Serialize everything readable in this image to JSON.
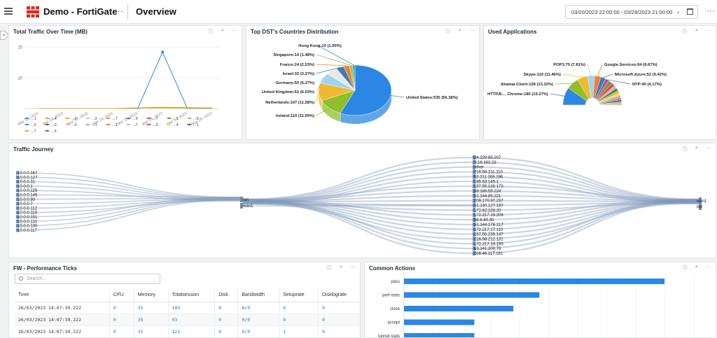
{
  "header": {
    "app_title": "Demo - FortiGate",
    "page_title": "Overview",
    "date_range": "03/20/2023 22:00:00 - 03/28/2023 21:00:00",
    "more": "···"
  },
  "tools": {
    "info": "ⓘ",
    "zoom": "⌕",
    "more": "···"
  },
  "traffic_over_time": {
    "title": "Total Traffic Over Time (MB)",
    "chart_data": {
      "type": "line",
      "x": [
        "Mar 21, 2023",
        "Mar 22, 2023",
        "Mar 23, 2023",
        "Mar 24, 2023",
        "Mar 25, 2023",
        "Mar 26, 2023",
        "Mar 27, 2023",
        "Mar 28, 2023"
      ],
      "y_ticks": [
        10,
        20
      ],
      "ylim": [
        0,
        22
      ],
      "series": [
        {
          "name": "...1",
          "color": "#2b8be6",
          "values": [
            0,
            0,
            0,
            0,
            0,
            18.5,
            0,
            0
          ]
        },
        {
          "name": "...4",
          "color": "#9bbd2a",
          "values": [
            0,
            0,
            0,
            0,
            0.2,
            0.4,
            0.3,
            0.2
          ]
        },
        {
          "name": "...0",
          "color": "#f0a030",
          "values": [
            0,
            0,
            0,
            0,
            0.1,
            0.2,
            0.1,
            0.1
          ]
        }
      ],
      "legend": [
        {
          "label": "...1",
          "color": "#2b8be6"
        },
        {
          "label": "...4",
          "color": "#9bbd2a"
        },
        {
          "label": "...0",
          "color": "#f0a030"
        },
        {
          "label": "...2",
          "color": "#9fd0f0"
        },
        {
          "label": "...7",
          "color": "#f08a3c"
        },
        {
          "label": "...5",
          "color": "#3a7db8"
        },
        {
          "label": "...7",
          "color": "#b84fa0"
        },
        {
          "label": "...3",
          "color": "#6d9c3a"
        },
        {
          "label": "...6",
          "color": "#c8b84a"
        },
        {
          "label": "...0",
          "color": "#2b8be6"
        },
        {
          "label": "...0",
          "color": "#b83a3a"
        },
        {
          "label": "...0",
          "color": "#f0b060"
        },
        {
          "label": "...1",
          "color": "#b89ee0"
        },
        {
          "label": "...1",
          "color": "#e07830"
        },
        {
          "label": "...7",
          "color": "#f5a0c0"
        },
        {
          "label": "...0",
          "color": "#e04848"
        },
        {
          "label": "...4",
          "color": "#f0e040"
        },
        {
          "label": "...1",
          "color": "#2a5fa8"
        },
        {
          "label": "...7",
          "color": "#f0a030"
        },
        {
          "label": "...5",
          "color": "#2e8b3a"
        }
      ]
    }
  },
  "countries": {
    "title": "Top DST's Countries Distribution",
    "chart_data": {
      "type": "pie",
      "slices": [
        {
          "label": "United States:535 (56.38%)",
          "value": 535,
          "color": "#2b87e3"
        },
        {
          "label": "Ireland:110 (11.59%)",
          "value": 110,
          "color": "#8fbf2a"
        },
        {
          "label": "Netherlands:107 (11.28%)",
          "value": 107,
          "color": "#f2b830"
        },
        {
          "label": "United Kingdom:62 (6.53%)",
          "value": 62,
          "color": "#9fd3f2"
        },
        {
          "label": "Germany:50 (5.27%)",
          "value": 50,
          "color": "#e8e8e8"
        },
        {
          "label": "Israel:32 (3.37%)",
          "value": 32,
          "color": "#3b7db8"
        },
        {
          "label": "France:24 (2.53%)",
          "value": 24,
          "color": "#f08030"
        },
        {
          "label": "Singapore:14 (1.48%)",
          "value": 14,
          "color": "#a0c060"
        },
        {
          "label": "Hong Kong:10 (1.05%)",
          "value": 10,
          "color": "#3fa0b0"
        }
      ]
    }
  },
  "applications": {
    "title": "Used Applications",
    "chart_data": {
      "type": "pie",
      "slices": [
        {
          "label": "HTTP.B..._Chrome:185 (19.27%)",
          "value": 185,
          "color": "#2b87e3"
        },
        {
          "label": "Akamai.Client:128 (13.33%)",
          "value": 128,
          "color": "#8fbf2a"
        },
        {
          "label": "Skype:110 (11.46%)",
          "value": 110,
          "color": "#f2b830"
        },
        {
          "label": "POP3:75 (7.81%)",
          "value": 75,
          "color": "#9fd3f2"
        },
        {
          "label": "Google.Services:64 (6.67%)",
          "value": 64,
          "color": "#f08030"
        },
        {
          "label": "Microsoft.Azure:52 (5.42%)",
          "value": 52,
          "color": "#3b7db8"
        },
        {
          "label": "NTP:40 (4.17%)",
          "value": 40,
          "color": "#b84fa0"
        },
        {
          "label": "",
          "value": 40,
          "color": "#6d9c3a"
        },
        {
          "label": "",
          "value": 36,
          "color": "#e04848"
        },
        {
          "label": "",
          "value": 32,
          "color": "#f5a0c0"
        },
        {
          "label": "",
          "value": 30,
          "color": "#2e8b3a"
        },
        {
          "label": "",
          "value": 28,
          "color": "#c8b84a"
        },
        {
          "label": "",
          "value": 26,
          "color": "#f0e040"
        },
        {
          "label": "",
          "value": 24,
          "color": "#b89ee0"
        },
        {
          "label": "",
          "value": 22,
          "color": "#e07830"
        },
        {
          "label": "",
          "value": 20,
          "color": "#2a5fa8"
        },
        {
          "label": "",
          "value": 18,
          "color": "#a0c060"
        },
        {
          "label": "",
          "value": 16,
          "color": "#f0a060"
        }
      ]
    }
  },
  "journey": {
    "title": "Traffic Journey",
    "sources": [
      "10.0.0.167",
      "10.0.0.127",
      "10.0.0.31",
      "10.0.0.1",
      "10.0.0.125",
      "10.0.0.146",
      "10.0.0.90",
      "10.0.0.7",
      "10.0.0.112",
      "10.0.0.114",
      "10.0.0.151",
      "10.0.0.131",
      "10.0.0.130",
      "10.0.0.117"
    ],
    "interfaces_in": [
      "lan",
      "wan1"
    ],
    "destinations": [
      "34.229.85.207",
      "3.16.162.23",
      "other",
      "216.58.211.110",
      "52.211.168.196",
      "185.63.145.1",
      "157.55.130.173",
      "68.169.59.224",
      "51.144.85.221",
      "209.170.97.237",
      "51.140.127.197",
      "172.82.228.20",
      "172.217.19.206",
      "96.6.40.30",
      "51.144.176.217",
      "172.217.17.110",
      "157.55.235.147",
      "216.58.212.131",
      "172.217.19.195",
      "63.141.200.78",
      "208.46.117.181"
    ],
    "interfaces_out": [
      "wan1",
      "lan"
    ]
  },
  "performance": {
    "title": "FW - Performance Ticks",
    "search_placeholder": "Search...",
    "columns": [
      "Time",
      "CPU",
      "Memory",
      "Totalsession",
      "Disk",
      "Bandwidth",
      "Setuprate",
      "Disklograte"
    ],
    "rows": [
      [
        "26/03/2023 14:07:39.222",
        "0",
        "35",
        "105",
        "0",
        "0/0",
        "0",
        "0"
      ],
      [
        "26/03/2023 14:07:39.222",
        "0",
        "35",
        "93",
        "0",
        "0/0",
        "0",
        "0"
      ],
      [
        "26/03/2023 14:07:39.222",
        "0",
        "35",
        "121",
        "0",
        "0/0",
        "1",
        "0"
      ]
    ]
  },
  "actions": {
    "title": "Common Actions",
    "chart_data": {
      "type": "bar",
      "orientation": "horizontal",
      "categories": [
        "pass",
        "perf-stats",
        "close",
        "accept",
        "tunnel-stats"
      ],
      "values": [
        100,
        52,
        42,
        27,
        27
      ],
      "color": "#2b87e3"
    }
  }
}
